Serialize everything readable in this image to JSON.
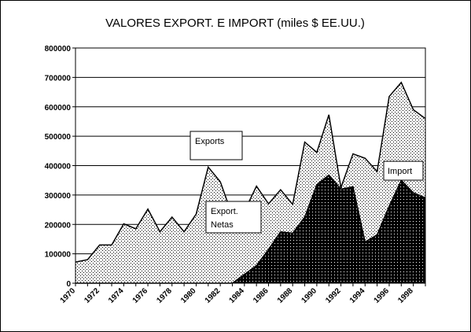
{
  "chart_data": {
    "type": "area",
    "title": "VALORES EXPORT. E IMPORT (miles $ EE.UU.)",
    "xlabel": "",
    "ylabel": "",
    "ylim": [
      0,
      800000
    ],
    "yticks": [
      "800000",
      "700000",
      "600000",
      "500000",
      "400000",
      "300000",
      "200000",
      "100000",
      "0"
    ],
    "yticks_values": [
      800000,
      700000,
      600000,
      500000,
      400000,
      300000,
      200000,
      100000,
      0
    ],
    "xlim": [
      1970,
      1999
    ],
    "xticks": [
      "1970",
      "1972",
      "1974",
      "1976",
      "1978",
      "1980",
      "1982",
      "1984",
      "1986",
      "1988",
      "1990",
      "1992",
      "1994",
      "1996",
      "1998"
    ],
    "xticks_values": [
      1970,
      1972,
      1974,
      1976,
      1978,
      1980,
      1982,
      1984,
      1986,
      1988,
      1990,
      1992,
      1994,
      1996,
      1998
    ],
    "grid": "horizontal",
    "x": [
      1970,
      1971,
      1972,
      1973,
      1974,
      1975,
      1976,
      1977,
      1978,
      1979,
      1980,
      1981,
      1982,
      1983,
      1984,
      1985,
      1986,
      1987,
      1988,
      1989,
      1990,
      1991,
      1992,
      1993,
      1994,
      1995,
      1996,
      1997,
      1998,
      1999
    ],
    "series": [
      {
        "name": "Exports",
        "fill": "dotted",
        "values": [
          72000,
          80000,
          130000,
          130000,
          202000,
          185000,
          252000,
          175000,
          225000,
          175000,
          235000,
          395000,
          345000,
          230000,
          245000,
          330000,
          270000,
          318000,
          268000,
          480000,
          445000,
          573000,
          325000,
          440000,
          425000,
          380000,
          635000,
          683000,
          590000,
          560000
        ]
      },
      {
        "name": "Import",
        "fill": "black-dotted",
        "values": [
          0,
          0,
          0,
          0,
          0,
          0,
          0,
          0,
          0,
          0,
          0,
          0,
          0,
          0,
          30000,
          60000,
          115000,
          175000,
          170000,
          225000,
          335000,
          368000,
          320000,
          328000,
          140000,
          165000,
          262000,
          350000,
          308000,
          290000
        ]
      }
    ],
    "annotations": [
      {
        "id": "exports",
        "text": "Exports"
      },
      {
        "id": "netas",
        "lines": [
          "Export.",
          "Netas"
        ]
      },
      {
        "id": "import",
        "text": "Import"
      }
    ]
  }
}
